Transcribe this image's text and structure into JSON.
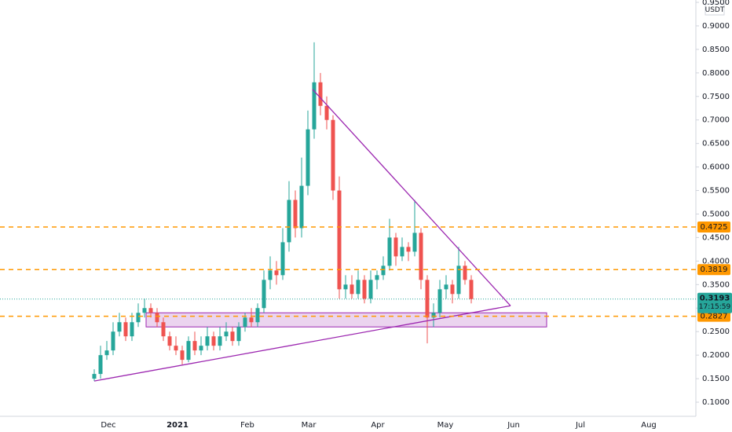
{
  "chart_data": {
    "type": "candlestick",
    "unit": "USDT",
    "open": [
      0.15,
      0.16,
      0.2,
      0.21,
      0.25,
      0.27,
      0.24,
      0.27,
      0.29,
      0.3,
      0.29,
      0.27,
      0.24,
      0.22,
      0.21,
      0.19,
      0.23,
      0.21,
      0.22,
      0.24,
      0.22,
      0.24,
      0.25,
      0.23,
      0.26,
      0.28,
      0.27,
      0.3,
      0.36,
      0.38,
      0.37,
      0.44,
      0.53,
      0.47,
      0.56,
      0.68,
      0.78,
      0.73,
      0.7,
      0.55,
      0.34,
      0.35,
      0.33,
      0.36,
      0.32,
      0.36,
      0.37,
      0.39,
      0.45,
      0.41,
      0.43,
      0.42,
      0.46,
      0.36,
      0.28,
      0.29,
      0.34,
      0.35,
      0.33,
      0.39,
      0.36
    ],
    "high": [
      0.17,
      0.22,
      0.23,
      0.27,
      0.29,
      0.28,
      0.29,
      0.31,
      0.32,
      0.31,
      0.3,
      0.28,
      0.25,
      0.24,
      0.22,
      0.24,
      0.25,
      0.24,
      0.26,
      0.25,
      0.26,
      0.27,
      0.26,
      0.27,
      0.29,
      0.3,
      0.31,
      0.38,
      0.41,
      0.4,
      0.47,
      0.57,
      0.55,
      0.62,
      0.72,
      0.865,
      0.8,
      0.75,
      0.71,
      0.58,
      0.37,
      0.37,
      0.38,
      0.37,
      0.38,
      0.38,
      0.41,
      0.49,
      0.46,
      0.45,
      0.44,
      0.53,
      0.47,
      0.37,
      0.31,
      0.36,
      0.37,
      0.36,
      0.43,
      0.4,
      0.37
    ],
    "low": [
      0.145,
      0.15,
      0.19,
      0.2,
      0.24,
      0.23,
      0.23,
      0.26,
      0.28,
      0.28,
      0.26,
      0.23,
      0.21,
      0.2,
      0.18,
      0.185,
      0.2,
      0.2,
      0.21,
      0.21,
      0.21,
      0.23,
      0.22,
      0.22,
      0.25,
      0.26,
      0.26,
      0.29,
      0.34,
      0.35,
      0.36,
      0.42,
      0.45,
      0.45,
      0.54,
      0.66,
      0.71,
      0.68,
      0.53,
      0.32,
      0.32,
      0.32,
      0.32,
      0.31,
      0.31,
      0.34,
      0.36,
      0.38,
      0.39,
      0.4,
      0.4,
      0.41,
      0.34,
      0.225,
      0.26,
      0.28,
      0.32,
      0.31,
      0.32,
      0.35,
      0.31
    ],
    "close": [
      0.16,
      0.2,
      0.21,
      0.25,
      0.27,
      0.24,
      0.27,
      0.29,
      0.3,
      0.29,
      0.27,
      0.24,
      0.22,
      0.21,
      0.19,
      0.23,
      0.21,
      0.22,
      0.24,
      0.22,
      0.24,
      0.25,
      0.23,
      0.26,
      0.28,
      0.27,
      0.3,
      0.36,
      0.38,
      0.37,
      0.44,
      0.53,
      0.47,
      0.56,
      0.68,
      0.78,
      0.73,
      0.7,
      0.55,
      0.34,
      0.35,
      0.33,
      0.36,
      0.32,
      0.36,
      0.37,
      0.39,
      0.45,
      0.41,
      0.43,
      0.42,
      0.46,
      0.36,
      0.28,
      0.29,
      0.34,
      0.35,
      0.33,
      0.39,
      0.36,
      0.3193
    ],
    "up_color": "#26a69a",
    "down_color": "#ef5350",
    "ylim": [
      0.07,
      0.955
    ],
    "yticks": [
      {
        "value": 0.95,
        "label": "0.9500"
      },
      {
        "value": 0.9,
        "label": "0.9000"
      },
      {
        "value": 0.85,
        "label": "0.8500"
      },
      {
        "value": 0.8,
        "label": "0.8000"
      },
      {
        "value": 0.75,
        "label": "0.7500"
      },
      {
        "value": 0.7,
        "label": "0.7000"
      },
      {
        "value": 0.65,
        "label": "0.6500"
      },
      {
        "value": 0.6,
        "label": "0.6000"
      },
      {
        "value": 0.55,
        "label": "0.5500"
      },
      {
        "value": 0.5,
        "label": "0.5000"
      },
      {
        "value": 0.45,
        "label": "0.4500"
      },
      {
        "value": 0.4,
        "label": "0.4000"
      },
      {
        "value": 0.35,
        "label": "0.3500"
      },
      {
        "value": 0.3,
        "label": "0.3000"
      },
      {
        "value": 0.25,
        "label": "0.2500"
      },
      {
        "value": 0.2,
        "label": "0.2000"
      },
      {
        "value": 0.15,
        "label": "0.1500"
      },
      {
        "value": 0.1,
        "label": "0.1000"
      }
    ],
    "xlabels": [
      "Dec",
      "2021",
      "Feb",
      "Mar",
      "Apr",
      "May",
      "Jun",
      "Jul",
      "Aug"
    ],
    "levels": [
      0.4725,
      0.3819,
      0.2827
    ],
    "level_color": "#ff9800",
    "last_price": 0.3193,
    "countdown": "17:15:59",
    "zone": {
      "low": 0.26,
      "high": 0.29
    },
    "trendlines": [
      {
        "from": 0.145,
        "to": 0.305
      },
      {
        "from": 0.765,
        "to": 0.305
      }
    ],
    "drawing_color": "#9c27b0"
  }
}
